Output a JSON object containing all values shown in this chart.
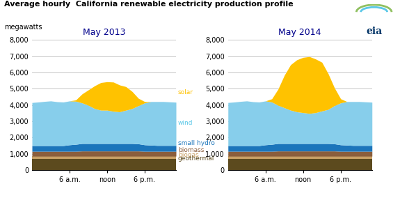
{
  "title1": "Average hourly  California renewable electricity production profile",
  "ylabel": "megawatts",
  "colors": {
    "geothermal": "#5C4A1E",
    "biogas": "#C8A065",
    "biomass": "#8B5E3C",
    "small_hydro": "#1B75BB",
    "wind": "#87CEEB",
    "solar": "#FFC200"
  },
  "xtick_labels": [
    "6 a.m.",
    "noon",
    "6 p.m."
  ],
  "xtick_positions": [
    6,
    12,
    18
  ],
  "ylim": [
    0,
    8000
  ],
  "yticks": [
    0,
    1000,
    2000,
    3000,
    4000,
    5000,
    6000,
    7000,
    8000
  ],
  "chart2013": {
    "title": "May 2013",
    "hours": [
      0,
      1,
      2,
      3,
      4,
      5,
      6,
      7,
      8,
      9,
      10,
      11,
      12,
      13,
      14,
      15,
      16,
      17,
      18,
      19,
      20,
      21,
      22,
      23
    ],
    "geothermal": [
      700,
      700,
      700,
      700,
      700,
      700,
      700,
      700,
      700,
      700,
      700,
      700,
      700,
      700,
      700,
      700,
      700,
      700,
      700,
      700,
      700,
      700,
      700,
      700
    ],
    "biogas": [
      150,
      150,
      150,
      150,
      150,
      150,
      150,
      150,
      150,
      150,
      150,
      150,
      150,
      150,
      150,
      150,
      150,
      150,
      150,
      150,
      150,
      150,
      150,
      150
    ],
    "biomass": [
      300,
      300,
      300,
      300,
      300,
      300,
      300,
      300,
      320,
      320,
      320,
      320,
      320,
      320,
      320,
      320,
      320,
      320,
      300,
      300,
      300,
      300,
      300,
      300
    ],
    "small_hydro": [
      350,
      350,
      350,
      350,
      350,
      350,
      400,
      430,
      460,
      460,
      460,
      460,
      460,
      460,
      460,
      460,
      460,
      440,
      400,
      380,
      360,
      360,
      360,
      360
    ],
    "wind": [
      2650,
      2680,
      2720,
      2750,
      2700,
      2680,
      2700,
      2650,
      2500,
      2350,
      2150,
      2050,
      2050,
      1980,
      1950,
      2050,
      2150,
      2350,
      2580,
      2680,
      2700,
      2700,
      2680,
      2660
    ],
    "solar": [
      0,
      0,
      0,
      0,
      0,
      0,
      0,
      80,
      550,
      950,
      1400,
      1700,
      1750,
      1800,
      1650,
      1450,
      1050,
      450,
      80,
      0,
      0,
      0,
      0,
      0
    ]
  },
  "chart2014": {
    "title": "May 2014",
    "hours": [
      0,
      1,
      2,
      3,
      4,
      5,
      6,
      7,
      8,
      9,
      10,
      11,
      12,
      13,
      14,
      15,
      16,
      17,
      18,
      19,
      20,
      21,
      22,
      23
    ],
    "geothermal": [
      700,
      700,
      700,
      700,
      700,
      700,
      700,
      700,
      700,
      700,
      700,
      700,
      700,
      700,
      700,
      700,
      700,
      700,
      700,
      700,
      700,
      700,
      700,
      700
    ],
    "biogas": [
      150,
      150,
      150,
      150,
      150,
      150,
      150,
      150,
      150,
      150,
      150,
      150,
      150,
      150,
      150,
      150,
      150,
      150,
      150,
      150,
      150,
      150,
      150,
      150
    ],
    "biomass": [
      300,
      300,
      300,
      300,
      300,
      300,
      300,
      300,
      320,
      320,
      320,
      320,
      320,
      320,
      320,
      320,
      320,
      320,
      300,
      300,
      300,
      300,
      300,
      300
    ],
    "small_hydro": [
      350,
      350,
      350,
      350,
      350,
      350,
      400,
      430,
      460,
      460,
      460,
      460,
      460,
      460,
      460,
      460,
      460,
      440,
      400,
      380,
      360,
      360,
      360,
      360
    ],
    "wind": [
      2650,
      2680,
      2720,
      2750,
      2700,
      2680,
      2700,
      2600,
      2350,
      2200,
      2050,
      1950,
      1900,
      1850,
      1900,
      2000,
      2100,
      2350,
      2580,
      2680,
      2700,
      2700,
      2680,
      2660
    ],
    "solar": [
      0,
      0,
      0,
      0,
      0,
      0,
      0,
      200,
      1000,
      2000,
      2800,
      3200,
      3400,
      3500,
      3300,
      3000,
      2200,
      1100,
      250,
      0,
      0,
      0,
      0,
      0
    ]
  },
  "background_color": "#FFFFFF",
  "grid_color": "#BBBBBB",
  "title_color": "#00008B",
  "label_colors": {
    "solar": "#FFC200",
    "wind": "#5BC8E8",
    "small hydro": "#1B75BB",
    "biomass": "#8B5E3C",
    "biogas": "#C8A065",
    "geothermal": "#5C4A1E"
  }
}
